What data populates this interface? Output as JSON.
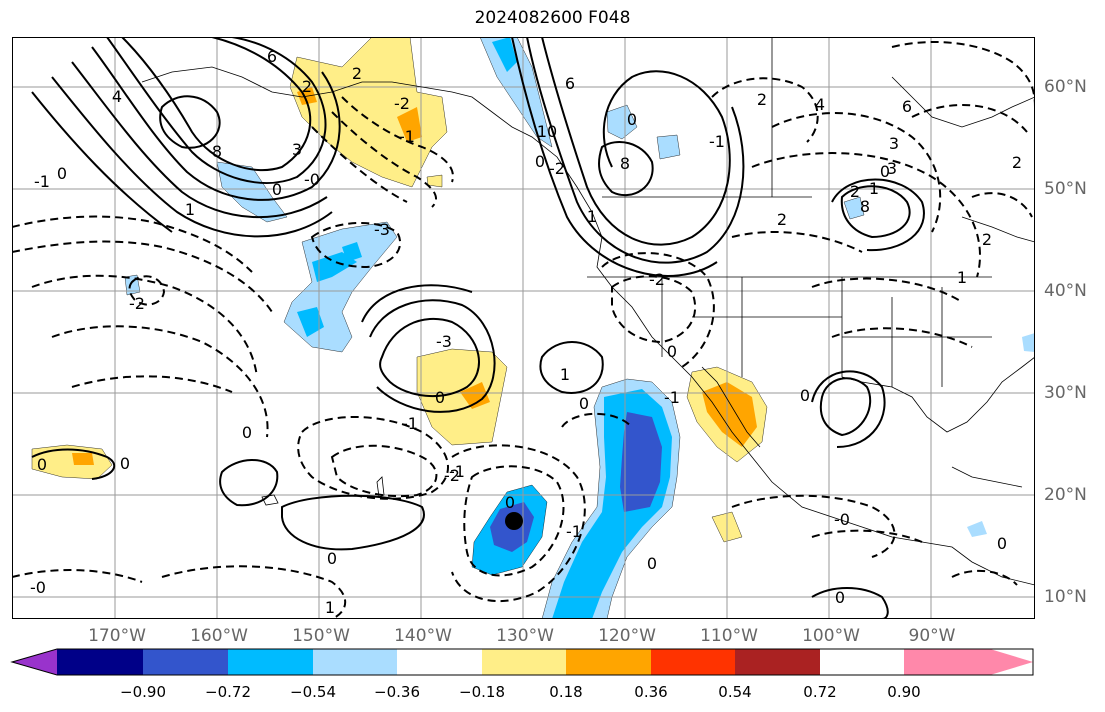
{
  "title": "2024082600 F048",
  "lon_labels": [
    "170°W",
    "160°W",
    "150°W",
    "140°W",
    "130°W",
    "120°W",
    "110°W",
    "100°W",
    "90°W"
  ],
  "lat_labels": [
    "60°N",
    "50°N",
    "40°N",
    "30°N",
    "20°N",
    "10°N"
  ],
  "colorbar": {
    "ticks": [
      "−0.90",
      "−0.72",
      "−0.54",
      "−0.36",
      "−0.18",
      "0.18",
      "0.36",
      "0.54",
      "0.72",
      "0.90"
    ],
    "colors": [
      "#9933cc",
      "#000088",
      "#3355cc",
      "#00bbff",
      "#aaddff",
      "#ffffff",
      "#ffee88",
      "#ffa500",
      "#ff3300",
      "#aa2222",
      "#ff88aa"
    ]
  },
  "contour_labels": [
    "6",
    "4",
    "2",
    "8",
    "3",
    "1",
    "0",
    "-0",
    "-1",
    "-2",
    "-3",
    "2",
    "0",
    "8",
    "1",
    "0",
    "6",
    "10",
    "-2",
    "-1",
    "0",
    "2",
    "-1",
    "-2",
    "0",
    "-3",
    "0",
    "-1",
    "1",
    "-2",
    "0",
    "-0",
    "0",
    "0",
    "1",
    "-1",
    "0",
    "0",
    "0",
    "-0",
    "2",
    "3",
    "1",
    "0",
    "0",
    "2",
    "0",
    "6",
    "2",
    "4",
    "3",
    "8",
    "0",
    "1",
    "2",
    "-2",
    "-1",
    "0",
    "-1"
  ],
  "shading": [
    {
      "id": "alaska-gulf",
      "color": "#ffee88"
    },
    {
      "id": "alaska-gulf-core",
      "color": "#ffa500"
    },
    {
      "id": "midpac-blue",
      "color": "#aaddff"
    },
    {
      "id": "midpac-blue-core",
      "color": "#00bbff"
    },
    {
      "id": "low-center-yellow",
      "color": "#ffee88"
    },
    {
      "id": "low-center-orange",
      "color": "#ffa500"
    },
    {
      "id": "baja-yellow",
      "color": "#ffee88"
    },
    {
      "id": "baja-orange",
      "color": "#ffa500"
    },
    {
      "id": "east-pac-light",
      "color": "#aaddff"
    },
    {
      "id": "east-pac-mid",
      "color": "#00bbff"
    },
    {
      "id": "east-pac-core",
      "color": "#3355cc"
    },
    {
      "id": "storm-light",
      "color": "#00bbff"
    },
    {
      "id": "storm-core",
      "color": "#3355cc"
    },
    {
      "id": "hawaii-yellow",
      "color": "#ffee88"
    },
    {
      "id": "hawaii-orange",
      "color": "#ffa500"
    },
    {
      "id": "pnw-blue",
      "color": "#aaddff"
    },
    {
      "id": "bc-blue",
      "color": "#00bbff"
    },
    {
      "id": "canada-blue",
      "color": "#aaddff"
    },
    {
      "id": "mexico-yellow",
      "color": "#ffee88"
    }
  ],
  "storm_marker": {
    "lon": -130.5,
    "lat": 17.5
  }
}
